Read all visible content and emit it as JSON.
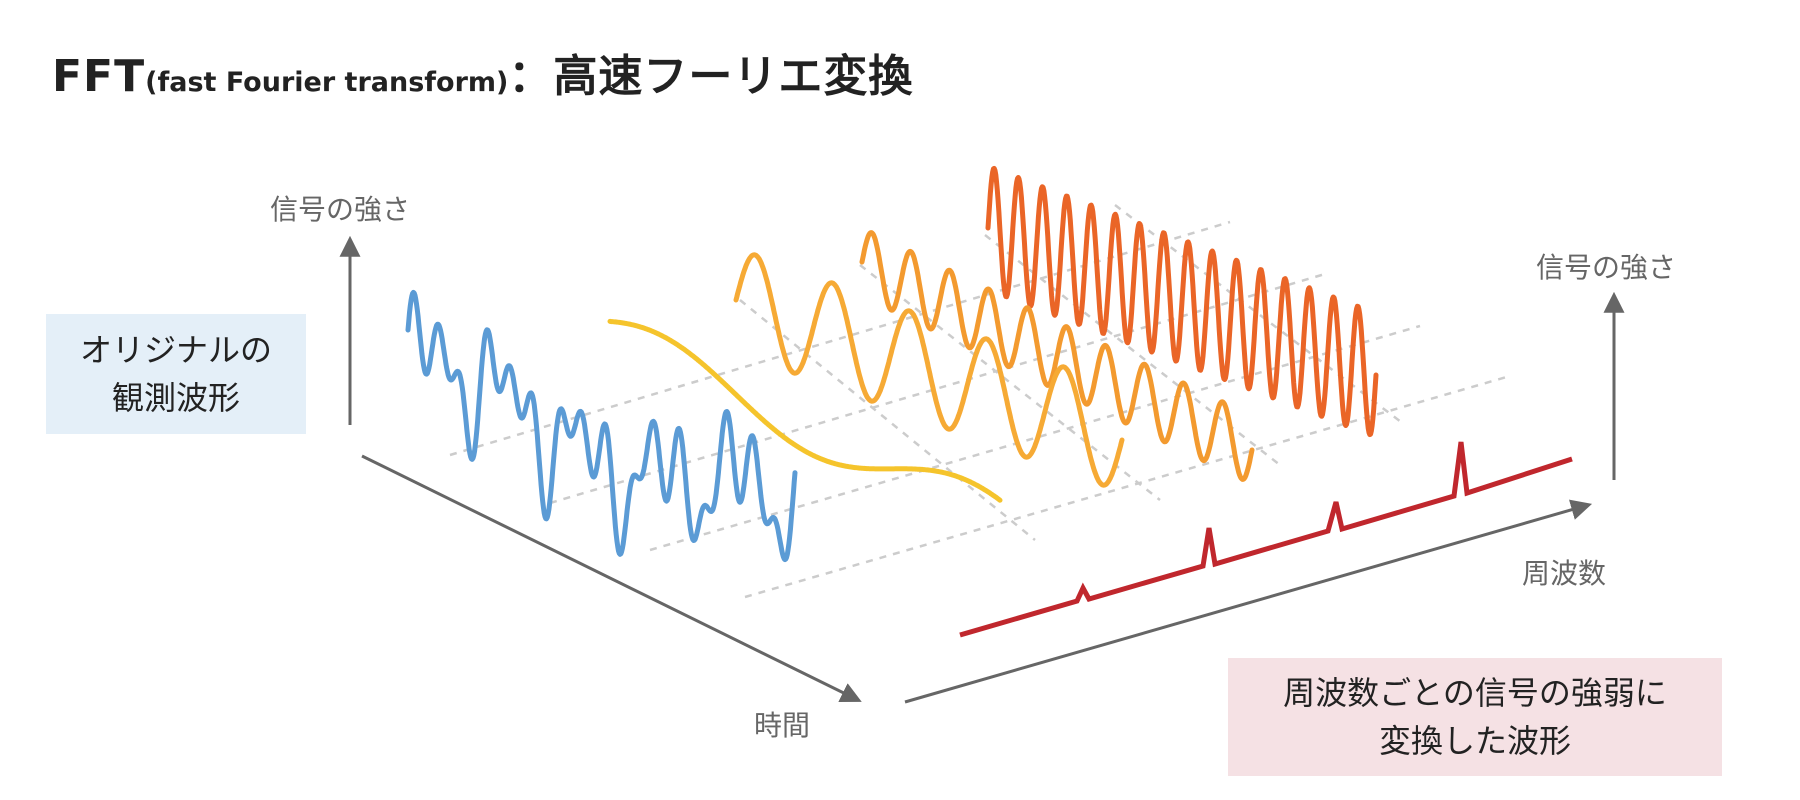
{
  "title": {
    "main": "FFT",
    "paren": "(fast Fourier transform)",
    "colon": "：",
    "japanese": "高速フーリエ変換"
  },
  "labels": {
    "signal_strength_left": "信号の強さ",
    "signal_strength_right": "信号の強さ",
    "time_axis": "時間",
    "frequency_axis": "周波数"
  },
  "boxes": {
    "original_line1": "オリジナルの",
    "original_line2": "観測波形",
    "frequency_line1": "周波数ごとの信号の強弱に",
    "frequency_line2": "変換した波形"
  },
  "colors": {
    "original_wave": "#5b9bd5",
    "component_1": "#f5c42c",
    "component_2": "#f6aa35",
    "component_3": "#f39a2f",
    "component_4": "#ea6527",
    "spectrum": "#c0272d",
    "axis": "#666666",
    "guide": "#cccccc",
    "box_original": "#e4eff8",
    "box_frequency": "#f5e1e4"
  }
}
